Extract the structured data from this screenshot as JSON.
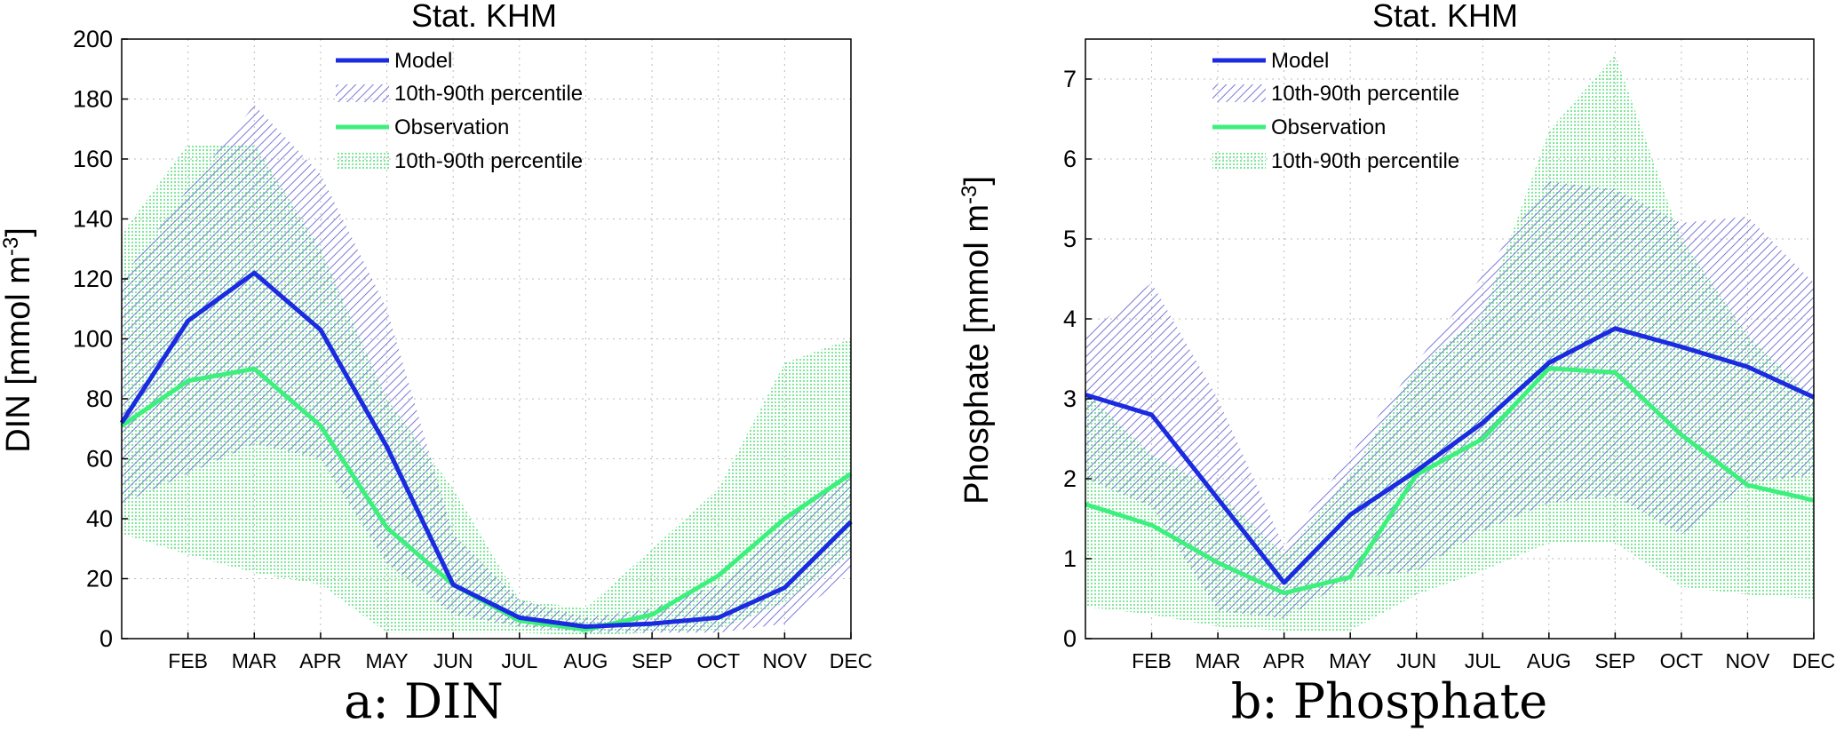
{
  "colors": {
    "model": "#1a2be0",
    "model_band": "#7b78d8",
    "observation": "#3df07e",
    "observation_band": "#7fe89a"
  },
  "chart_data": [
    {
      "type": "line",
      "title": "Stat. KHM",
      "caption": "a: DIN",
      "ylabel_main": "DIN [mmol m",
      "ylabel_sup": "-3",
      "ylabel_close": "]",
      "xlim": [
        1,
        12
      ],
      "ylim": [
        0,
        200
      ],
      "yticks": [
        "0",
        "20",
        "40",
        "60",
        "80",
        "100",
        "120",
        "140",
        "160",
        "180",
        "200"
      ],
      "xticks": [
        {
          "x": 2,
          "label": "FEB"
        },
        {
          "x": 3,
          "label": "MAR"
        },
        {
          "x": 4,
          "label": "APR"
        },
        {
          "x": 5,
          "label": "MAY"
        },
        {
          "x": 6,
          "label": "JUN"
        },
        {
          "x": 7,
          "label": "JUL"
        },
        {
          "x": 8,
          "label": "AUG"
        },
        {
          "x": 9,
          "label": "SEP"
        },
        {
          "x": 10,
          "label": "OCT"
        },
        {
          "x": 11,
          "label": "NOV"
        },
        {
          "x": 12,
          "label": "DEC"
        }
      ],
      "legend": [
        "Model",
        "10th-90th percentile",
        "Observation",
        "10th-90th percentile"
      ],
      "legend_position": "top-center",
      "grid": true,
      "x": [
        1,
        2,
        3,
        4,
        5,
        6,
        7,
        8,
        9,
        10,
        11,
        12
      ],
      "series": [
        {
          "name": "Model",
          "values": [
            72,
            106,
            122,
            103,
            64,
            18,
            7,
            4,
            5,
            7,
            17,
            39
          ]
        },
        {
          "name": "Observation",
          "values": [
            71,
            86,
            90,
            71,
            37,
            18,
            6,
            3,
            8,
            21,
            40,
            55
          ]
        }
      ],
      "bands": [
        {
          "name": "10th-90th percentile",
          "of": "Model",
          "lower": [
            45,
            55,
            65,
            60,
            25,
            8,
            4,
            2,
            2,
            2,
            5,
            22
          ],
          "upper": [
            120,
            150,
            178,
            155,
            110,
            35,
            13,
            7,
            10,
            18,
            40,
            55
          ]
        },
        {
          "name": "10th-90th percentile",
          "of": "Observation",
          "lower": [
            35,
            28,
            22,
            18,
            2,
            2,
            2,
            1,
            2,
            3,
            12,
            28
          ],
          "upper": [
            135,
            165,
            165,
            130,
            80,
            50,
            13,
            10,
            30,
            50,
            92,
            100
          ]
        }
      ]
    },
    {
      "type": "line",
      "title": "Stat. KHM",
      "caption": "b: Phosphate",
      "ylabel_main": "Phosphate [mmol m",
      "ylabel_sup": "-3",
      "ylabel_close": "]",
      "xlim": [
        1,
        12
      ],
      "ylim": [
        0,
        7.5
      ],
      "yticks": [
        "0",
        "1",
        "2",
        "3",
        "4",
        "5",
        "6",
        "7"
      ],
      "xticks": [
        {
          "x": 2,
          "label": "FEB"
        },
        {
          "x": 3,
          "label": "MAR"
        },
        {
          "x": 4,
          "label": "APR"
        },
        {
          "x": 5,
          "label": "MAY"
        },
        {
          "x": 6,
          "label": "JUN"
        },
        {
          "x": 7,
          "label": "JUL"
        },
        {
          "x": 8,
          "label": "AUG"
        },
        {
          "x": 9,
          "label": "SEP"
        },
        {
          "x": 10,
          "label": "OCT"
        },
        {
          "x": 11,
          "label": "NOV"
        },
        {
          "x": 12,
          "label": "DEC"
        }
      ],
      "legend": [
        "Model",
        "10th-90th percentile",
        "Observation",
        "10th-90th percentile"
      ],
      "legend_position": "top-center",
      "grid": true,
      "x": [
        1,
        2,
        3,
        4,
        5,
        6,
        7,
        8,
        9,
        10,
        11,
        12
      ],
      "series": [
        {
          "name": "Model",
          "values": [
            3.05,
            2.8,
            1.75,
            0.7,
            1.55,
            2.1,
            2.7,
            3.45,
            3.88,
            3.65,
            3.4,
            3.02
          ]
        },
        {
          "name": "Observation",
          "values": [
            1.68,
            1.42,
            0.95,
            0.57,
            0.77,
            2.05,
            2.5,
            3.38,
            3.33,
            2.55,
            1.92,
            1.73
          ]
        }
      ],
      "bands": [
        {
          "name": "10th-90th percentile",
          "of": "Model",
          "lower": [
            2.0,
            1.65,
            0.35,
            0.25,
            0.75,
            0.85,
            1.35,
            1.7,
            1.78,
            1.3,
            1.95,
            2.05
          ],
          "upper": [
            3.8,
            4.45,
            3.0,
            1.15,
            2.3,
            3.45,
            4.55,
            5.72,
            5.62,
            5.2,
            5.28,
            4.45
          ]
        },
        {
          "name": "10th-90th percentile",
          "of": "Observation",
          "lower": [
            0.4,
            0.3,
            0.15,
            0.1,
            0.1,
            0.55,
            0.85,
            1.2,
            1.2,
            0.65,
            0.55,
            0.5
          ],
          "upper": [
            3.1,
            2.3,
            1.85,
            1.05,
            2.05,
            3.4,
            4.05,
            6.35,
            7.3,
            5.0,
            3.8,
            3.0
          ]
        }
      ]
    }
  ]
}
